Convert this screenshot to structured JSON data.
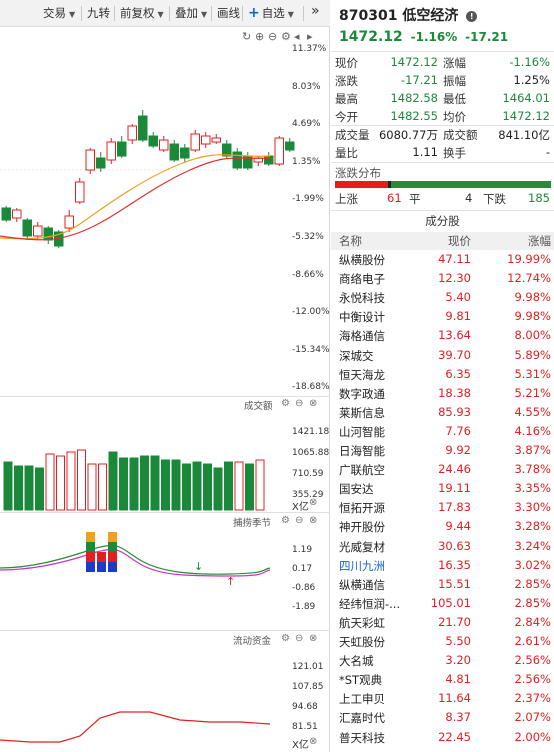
{
  "toolbar": {
    "trade": "交易",
    "jiuzhuan": "九转",
    "fuquan": "前复权",
    "overlay": "叠加",
    "draw": "画线",
    "add_watch": "自选",
    "expand": "»"
  },
  "main_chart": {
    "y_ticks": [
      "11.37%",
      "8.03%",
      "4.69%",
      "1.35%",
      "-1.99%",
      "-5.32%",
      "-8.66%",
      "-12.00%",
      "-15.34%",
      "-18.68%"
    ]
  },
  "volume_panel": {
    "title": "成交额",
    "y_ticks": [
      "1421.18",
      "1065.88",
      "710.59",
      "355.29"
    ],
    "unit": "X亿"
  },
  "indicator_panel": {
    "title": "捕捞季节",
    "y_ticks": [
      "1.19",
      "0.17",
      "-0.86",
      "-1.89"
    ]
  },
  "capital_panel": {
    "title": "流动资金",
    "y_ticks": [
      "121.01",
      "107.85",
      "94.68",
      "81.51"
    ],
    "unit": "X亿"
  },
  "stock": {
    "code": "870301",
    "name": "低空经济",
    "info_icon": "info-icon",
    "price": "1472.12",
    "change_pct": "-1.16%",
    "change": "-17.21"
  },
  "quote": [
    {
      "l1": "现价",
      "v1": "1472.12",
      "c1": "green",
      "l2": "涨幅",
      "v2": "-1.16%",
      "c2": "green"
    },
    {
      "l1": "涨跌",
      "v1": "-17.21",
      "c1": "green",
      "l2": "振幅",
      "v2": "1.25%",
      "c2": "black"
    },
    {
      "l1": "最高",
      "v1": "1482.58",
      "c1": "green",
      "l2": "最低",
      "v2": "1464.01",
      "c2": "green"
    },
    {
      "l1": "今开",
      "v1": "1482.55",
      "c1": "green",
      "l2": "均价",
      "v2": "1472.12",
      "c2": "green"
    },
    {
      "l1": "成交量",
      "v1": "6080.77万",
      "c1": "black",
      "l2": "成交额",
      "v2": "841.10亿",
      "c2": "black"
    },
    {
      "l1": "量比",
      "v1": "1.11",
      "c1": "black",
      "l2": "换手",
      "v2": "-",
      "c2": "black"
    }
  ],
  "distribution": {
    "title": "涨跌分布",
    "up_label": "上涨",
    "up_count": "61",
    "flat_label": "平",
    "flat_count": "4",
    "down_label": "下跌",
    "down_count": "185",
    "up_fraction": 0.244,
    "flat_fraction": 0.016
  },
  "constituents": {
    "title": "成分股",
    "col_name": "名称",
    "col_price": "现价",
    "col_change": "涨幅",
    "rows": [
      {
        "name": "纵横股份",
        "price": "47.11",
        "change": "19.99%"
      },
      {
        "name": "商络电子",
        "price": "12.30",
        "change": "12.74%"
      },
      {
        "name": "永悦科技",
        "price": "5.40",
        "change": "9.98%"
      },
      {
        "name": "中衡设计",
        "price": "9.81",
        "change": "9.98%"
      },
      {
        "name": "海格通信",
        "price": "13.64",
        "change": "8.00%"
      },
      {
        "name": "深城交",
        "price": "39.70",
        "change": "5.89%"
      },
      {
        "name": "恒天海龙",
        "price": "6.35",
        "change": "5.31%"
      },
      {
        "name": "数字政通",
        "price": "18.38",
        "change": "5.21%"
      },
      {
        "name": "莱斯信息",
        "price": "85.93",
        "change": "4.55%"
      },
      {
        "name": "山河智能",
        "price": "7.76",
        "change": "4.16%"
      },
      {
        "name": "日海智能",
        "price": "9.92",
        "change": "3.87%"
      },
      {
        "name": "广联航空",
        "price": "24.46",
        "change": "3.78%"
      },
      {
        "name": "国安达",
        "price": "19.11",
        "change": "3.35%"
      },
      {
        "name": "恒拓开源",
        "price": "17.83",
        "change": "3.30%"
      },
      {
        "name": "神开股份",
        "price": "9.44",
        "change": "3.28%"
      },
      {
        "name": "光威复材",
        "price": "30.63",
        "change": "3.24%"
      },
      {
        "name": "四川九洲",
        "price": "16.35",
        "change": "3.02%",
        "highlight": true
      },
      {
        "name": "纵横通信",
        "price": "15.51",
        "change": "2.85%"
      },
      {
        "name": "经纬恒润-...",
        "price": "105.01",
        "change": "2.85%"
      },
      {
        "name": "航天彩虹",
        "price": "21.70",
        "change": "2.84%"
      },
      {
        "name": "天虹股份",
        "price": "5.50",
        "change": "2.61%"
      },
      {
        "name": "大名城",
        "price": "3.20",
        "change": "2.56%"
      },
      {
        "name": "*ST观典",
        "price": "4.81",
        "change": "2.56%"
      },
      {
        "name": "上工申贝",
        "price": "11.64",
        "change": "2.37%"
      },
      {
        "name": "汇嘉时代",
        "price": "8.37",
        "change": "2.07%"
      },
      {
        "name": "普天科技",
        "price": "22.45",
        "change": "2.00%"
      }
    ]
  },
  "colors": {
    "up": "#e02020",
    "down": "#1a8a3a",
    "ma_short": "#f0a020",
    "ma_long": "#e03030"
  }
}
